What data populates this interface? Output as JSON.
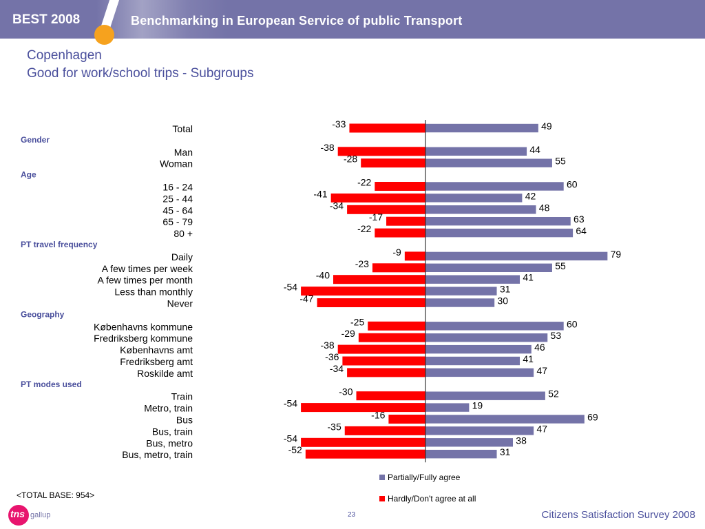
{
  "header": {
    "badge": "BEST 2008",
    "headline": "Benchmarking in European Service of public Transport"
  },
  "title": "Copenhagen",
  "subtitle": "Good for work/school trips - Subgroups",
  "base_note": "<TOTAL BASE: 954>",
  "footer": {
    "logo": "tns",
    "logo_sub": "gallup",
    "page": "23",
    "survey": "Citizens Satisfaction Survey 2008"
  },
  "colors": {
    "agree": "#7473a8",
    "disagree": "#ff0000"
  },
  "chart_data": {
    "type": "bar",
    "orientation": "horizontal-diverging",
    "xlim": [
      -54,
      79
    ],
    "legend": [
      "Partially/Fully agree",
      "Hardly/Don't agree at all"
    ],
    "legend_position": "bottom-right",
    "groups": [
      {
        "header": "",
        "rows": [
          {
            "label": "Total",
            "disagree": -33,
            "agree": 49
          }
        ]
      },
      {
        "header": "Gender",
        "rows": [
          {
            "label": "Man",
            "disagree": -38,
            "agree": 44
          },
          {
            "label": "Woman",
            "disagree": -28,
            "agree": 55
          }
        ]
      },
      {
        "header": "Age",
        "rows": [
          {
            "label": "16 - 24",
            "disagree": -22,
            "agree": 60
          },
          {
            "label": "25 - 44",
            "disagree": -41,
            "agree": 42
          },
          {
            "label": "45 - 64",
            "disagree": -34,
            "agree": 48
          },
          {
            "label": "65 - 79",
            "disagree": -17,
            "agree": 63
          },
          {
            "label": "80 +",
            "disagree": -22,
            "agree": 64
          }
        ]
      },
      {
        "header": "PT travel frequency",
        "rows": [
          {
            "label": "Daily",
            "disagree": -9,
            "agree": 79
          },
          {
            "label": "A few times per week",
            "disagree": -23,
            "agree": 55
          },
          {
            "label": "A few times per month",
            "disagree": -40,
            "agree": 41
          },
          {
            "label": "Less than monthly",
            "disagree": -54,
            "agree": 31
          },
          {
            "label": "Never",
            "disagree": -47,
            "agree": 30
          }
        ]
      },
      {
        "header": "Geography",
        "rows": [
          {
            "label": "Københavns kommune",
            "disagree": -25,
            "agree": 60
          },
          {
            "label": "Fredriksberg kommune",
            "disagree": -29,
            "agree": 53
          },
          {
            "label": "Københavns amt",
            "disagree": -38,
            "agree": 46
          },
          {
            "label": "Fredriksberg amt",
            "disagree": -36,
            "agree": 41
          },
          {
            "label": "Roskilde amt",
            "disagree": -34,
            "agree": 47
          }
        ]
      },
      {
        "header": "PT modes used",
        "rows": [
          {
            "label": "Train",
            "disagree": -30,
            "agree": 52
          },
          {
            "label": "Metro, train",
            "disagree": -54,
            "agree": 19
          },
          {
            "label": "Bus",
            "disagree": -16,
            "agree": 69
          },
          {
            "label": "Bus, train",
            "disagree": -35,
            "agree": 47
          },
          {
            "label": "Bus, metro",
            "disagree": -54,
            "agree": 38
          },
          {
            "label": "Bus, metro, train",
            "disagree": -52,
            "agree": 31
          }
        ]
      }
    ]
  }
}
